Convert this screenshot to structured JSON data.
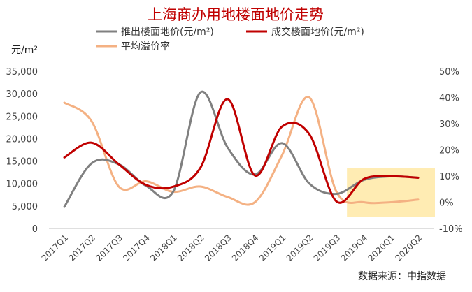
{
  "chart_data": {
    "type": "line",
    "title": "上海商办用地楼面地价走势",
    "y_left_unit": "元/m²",
    "source": "数据来源：中指数据",
    "categories": [
      "2017Q1",
      "2017Q2",
      "2017Q3",
      "2017Q4",
      "2018Q1",
      "2018Q2",
      "2018Q3",
      "2018Q4",
      "2019Q1",
      "2019Q2",
      "2019Q3",
      "2019Q4",
      "2020Q1",
      "2020Q2"
    ],
    "y_left": {
      "min": 0,
      "max": 35000,
      "step": 5000,
      "tick_labels": [
        "0",
        "5,000",
        "10,000",
        "15,000",
        "20,000",
        "25,000",
        "30,000",
        "35,000"
      ]
    },
    "y_right": {
      "min": -10,
      "max": 50,
      "step": 10,
      "tick_labels": [
        "-10%",
        "0%",
        "10%",
        "20%",
        "30%",
        "40%",
        "50%"
      ]
    },
    "grid": false,
    "legend_position": "top",
    "series": [
      {
        "name": "推出楼面地价(元/m²)",
        "axis": "left",
        "color": "#808080",
        "values": [
          4800,
          14500,
          14300,
          9500,
          8200,
          30300,
          18000,
          12000,
          19000,
          10000,
          7700,
          10800,
          11600,
          11300
        ]
      },
      {
        "name": "成交楼面地价(元/m²)",
        "axis": "left",
        "color": "#c00000",
        "values": [
          15800,
          19100,
          14300,
          9700,
          9300,
          13500,
          28800,
          11800,
          22700,
          21000,
          6000,
          11000,
          11600,
          11300
        ]
      },
      {
        "name": "平均溢价率",
        "axis": "right",
        "color": "#f4b183",
        "values": [
          38,
          31,
          6,
          8,
          4,
          6,
          2,
          0,
          18,
          40,
          4,
          0,
          0,
          1
        ]
      }
    ],
    "highlight": {
      "from_category": "2019Q4",
      "to_category": "2020Q2",
      "color": "#ffe699"
    }
  }
}
